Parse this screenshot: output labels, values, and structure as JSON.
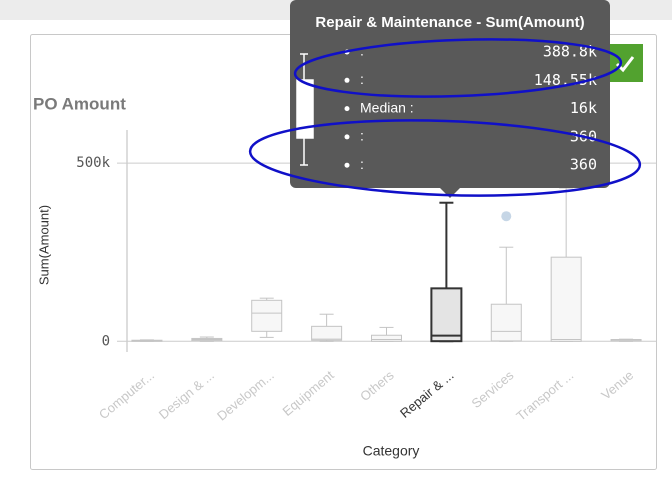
{
  "chart_data": {
    "type": "boxplot",
    "title": "PO Amount",
    "y_label": "Sum(Amount)",
    "x_label": "Category",
    "categories": [
      "Computer...",
      "Design & ...",
      "Developm...",
      "Equipment",
      "Others",
      "Repair & ...",
      "Services",
      "Transport ...",
      "Venue"
    ],
    "min": [
      0,
      0,
      11000,
      0,
      0,
      360,
      0,
      0,
      0
    ],
    "q1": [
      0,
      2000,
      28000,
      3000,
      0,
      360,
      1000,
      0,
      1000
    ],
    "median": [
      1000,
      5000,
      79000,
      6000,
      5000,
      16000,
      28000,
      5000,
      2000
    ],
    "q3": [
      3000,
      8000,
      115000,
      42000,
      17000,
      148550,
      104000,
      236000,
      5000
    ],
    "max": [
      4000,
      12000,
      121000,
      76000,
      39000,
      388800,
      264000,
      430000,
      6000
    ],
    "outliers": [
      [],
      [],
      [],
      [],
      [],
      [],
      [
        351000
      ],
      [],
      []
    ],
    "highlight_index": 5,
    "ylim": [
      -30000,
      590000
    ],
    "yticks": [
      0,
      {
        "value": 500000,
        "label": "500k"
      }
    ],
    "grid": true,
    "tooltip": {
      "title": "Repair & Maintenance - Sum(Amount)",
      "rows": [
        {
          "label": ":",
          "value": "388.8k"
        },
        {
          "label": ":",
          "value": "148.55k"
        },
        {
          "label": "Median :",
          "value": "16k"
        },
        {
          "label": ":",
          "value": "360"
        },
        {
          "label": ":",
          "value": "360"
        }
      ]
    }
  }
}
